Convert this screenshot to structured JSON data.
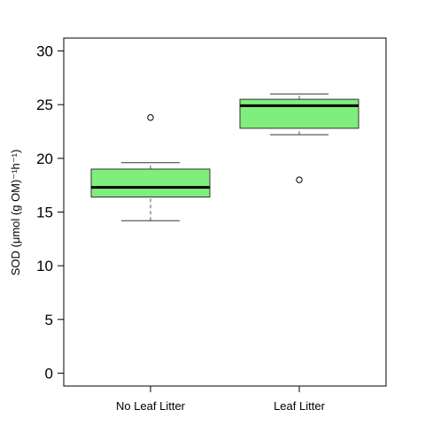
{
  "chart_data": {
    "type": "box",
    "title": "",
    "xlabel": "",
    "ylabel": "SOD (μmol (g OM)⁻¹h⁻¹)",
    "ylim": [
      -1.2,
      31.2
    ],
    "yticks": [
      0,
      5,
      10,
      15,
      20,
      25,
      30
    ],
    "categories": [
      "No Leaf Litter",
      "Leaf Litter"
    ],
    "box_color": "#80ee7d",
    "series": [
      {
        "category": "No Leaf Litter",
        "whisker_low": 14.2,
        "q1": 16.4,
        "median": 17.3,
        "q3": 19.0,
        "whisker_high": 19.6,
        "outliers": [
          23.8
        ]
      },
      {
        "category": "Leaf Litter",
        "whisker_low": 22.2,
        "q1": 22.8,
        "median": 24.9,
        "q3": 25.5,
        "whisker_high": 26.0,
        "outliers": [
          18.0
        ]
      }
    ]
  }
}
